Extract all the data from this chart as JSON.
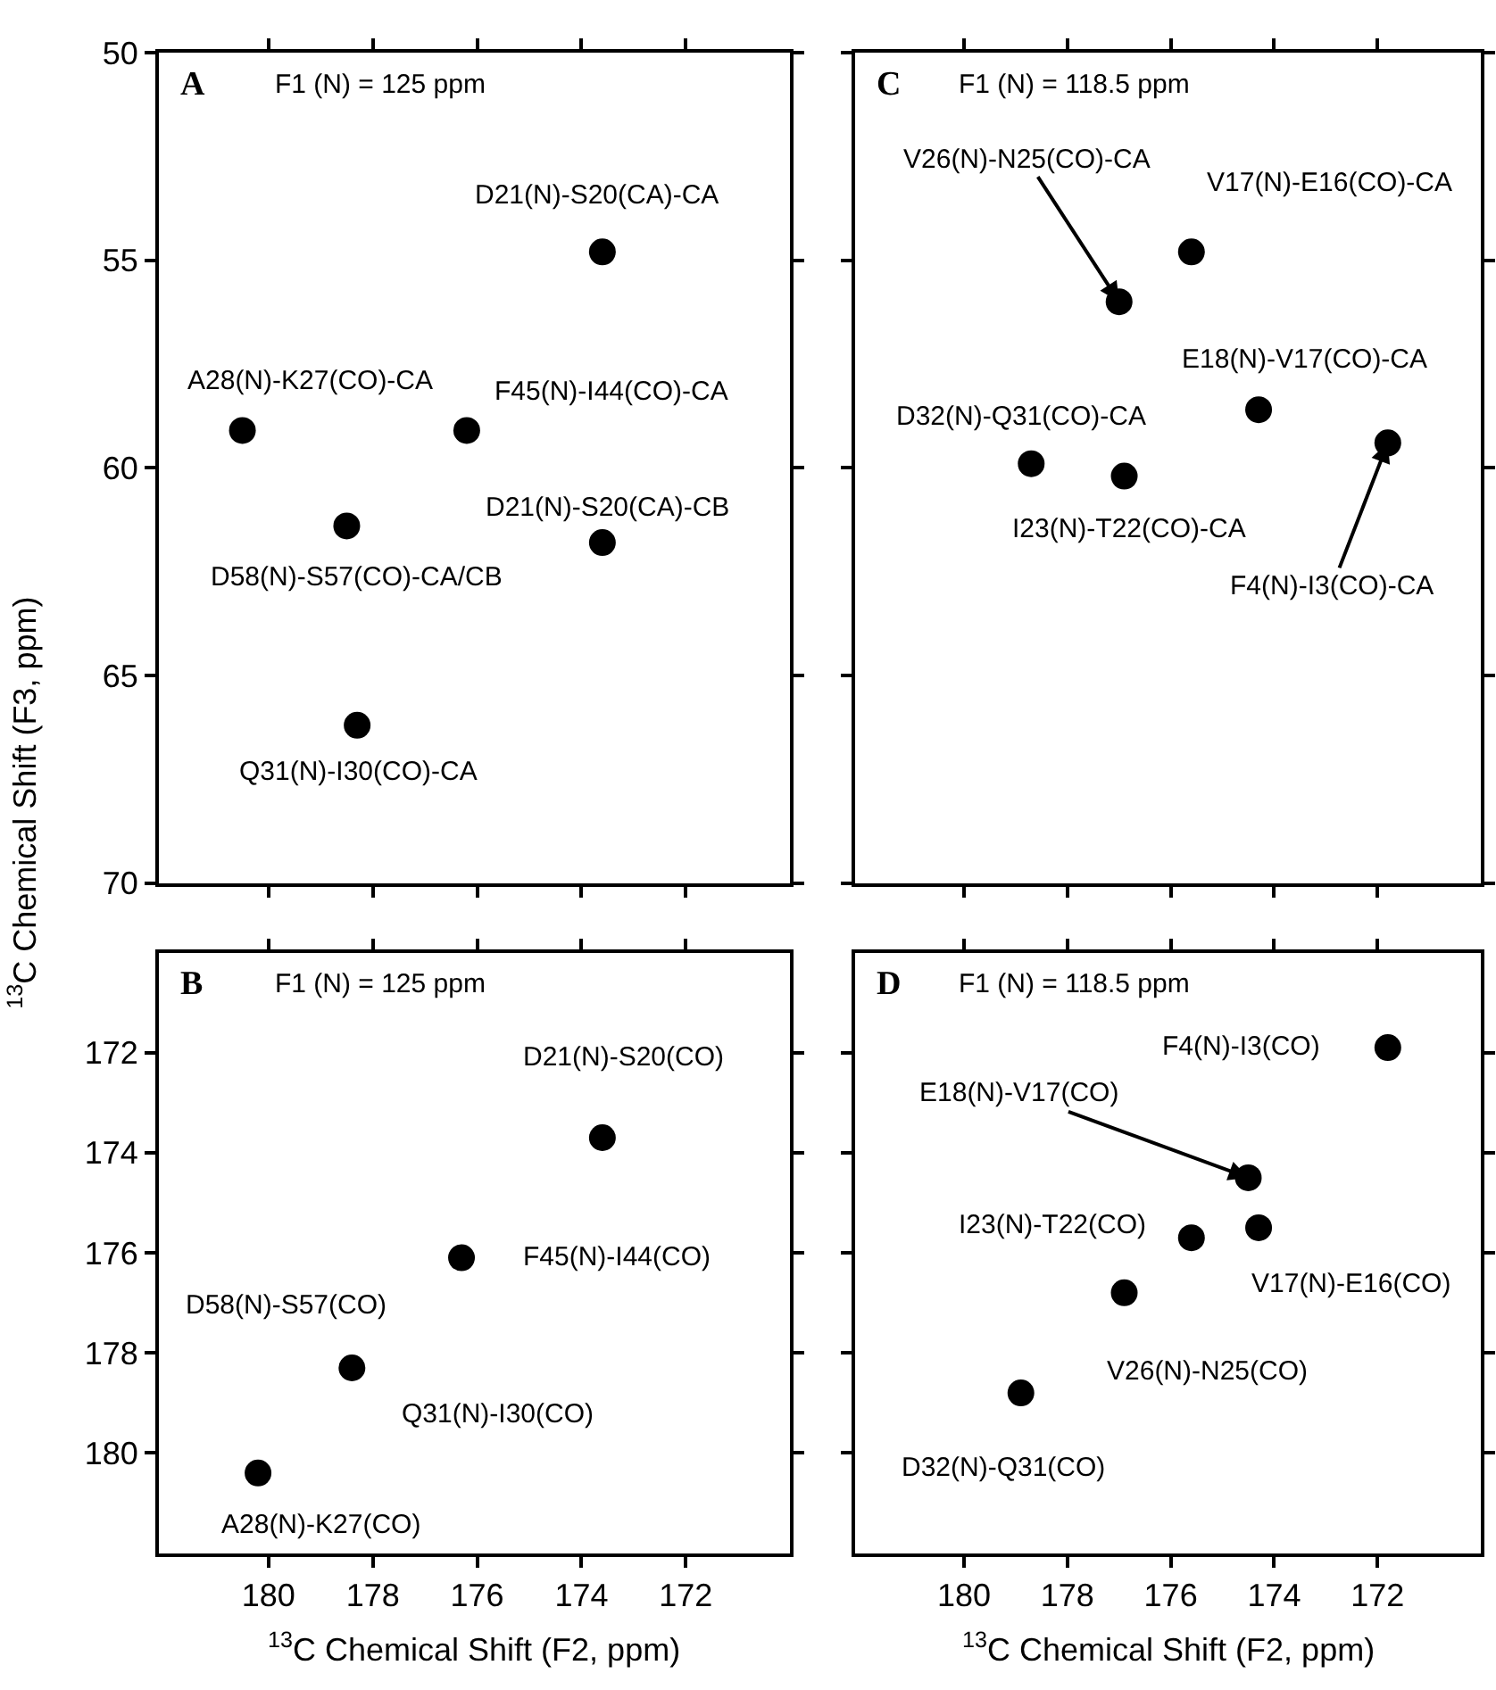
{
  "chart_data": [
    {
      "type": "scatter",
      "title": "A",
      "subtitle": "F1 (N) = 125 ppm",
      "ylabel": "$^{13}$C Chemical Shift (F3, ppm)",
      "marker": "circle",
      "tick_labels": "y",
      "xlim": [
        182.1,
        170.0
      ],
      "xticks": [
        180,
        178,
        176,
        174,
        172
      ],
      "ylim": [
        70,
        50
      ],
      "yticks": [
        50,
        55,
        60,
        65,
        70
      ],
      "series": [
        {
          "color": "#000000",
          "x": [
            173.6,
            180.5,
            176.2,
            178.5,
            173.6,
            178.3
          ],
          "values": [
            54.8,
            59.1,
            59.1,
            61.4,
            61.8,
            66.2
          ]
        }
      ],
      "annotations": [
        {
          "text": "D21(N)-S20(CA)-CA",
          "x": 173.6,
          "y": 54.8
        },
        {
          "text": "A28(N)-K27(CO)-CA",
          "x": 180.5,
          "y": 59.1
        },
        {
          "text": "F45(N)-I44(CO)-CA",
          "x": 176.2,
          "y": 59.1
        },
        {
          "text": "D58(N)-S57(CO)-CA/CB",
          "x": 178.5,
          "y": 61.4
        },
        {
          "text": "D21(N)-S20(CA)-CB",
          "x": 173.6,
          "y": 61.8
        },
        {
          "text": "Q31(N)-I30(CO)-CA",
          "x": 178.3,
          "y": 66.2
        }
      ]
    },
    {
      "type": "scatter",
      "title": "C",
      "subtitle": "F1 (N) = 118.5 ppm",
      "marker": "circle",
      "tick_labels": false,
      "xlim": [
        182.1,
        170.0
      ],
      "xticks": [
        180,
        178,
        176,
        174,
        172
      ],
      "ylim": [
        70,
        50
      ],
      "yticks": [
        50,
        55,
        60,
        65,
        70
      ],
      "series": [
        {
          "color": "#000000",
          "x": [
            177.0,
            175.6,
            174.3,
            178.7,
            176.9,
            171.8
          ],
          "values": [
            56.0,
            54.8,
            58.6,
            59.9,
            60.2,
            59.4
          ]
        }
      ],
      "annotations": [
        {
          "text": "V26(N)-N25(CO)-CA",
          "x": 177.0,
          "y": 56.0
        },
        {
          "text": "V17(N)-E16(CO)-CA",
          "x": 175.6,
          "y": 54.8
        },
        {
          "text": "E18(N)-V17(CO)-CA",
          "x": 174.3,
          "y": 58.6
        },
        {
          "text": "D32(N)-Q31(CO)-CA",
          "x": 178.7,
          "y": 59.9
        },
        {
          "text": "I23(N)-T22(CO)-CA",
          "x": 176.9,
          "y": 60.2
        },
        {
          "text": "F4(N)-I3(CO)-CA",
          "x": 171.8,
          "y": 59.4
        }
      ]
    },
    {
      "type": "scatter",
      "title": "B",
      "subtitle": "F1 (N) = 125 ppm",
      "xlabel": "$^{13}$C Chemical Shift (F2, ppm)",
      "marker": "circle",
      "xlim": [
        182.1,
        170.0
      ],
      "xticks": [
        180,
        178,
        176,
        174,
        172
      ],
      "ylim": [
        182,
        170
      ],
      "yticks": [
        172,
        174,
        176,
        178,
        180
      ],
      "series": [
        {
          "color": "#000000",
          "x": [
            173.6,
            176.3,
            178.4,
            180.2
          ],
          "values": [
            173.7,
            176.1,
            178.3,
            180.4
          ]
        }
      ],
      "annotations": [
        {
          "text": "D21(N)-S20(CO)",
          "x": 173.6,
          "y": 173.7
        },
        {
          "text": "F45(N)-I44(CO)",
          "x": 176.3,
          "y": 176.1
        },
        {
          "text": "D58(N)-S57(CO)",
          "x": 178.4,
          "y": 178.3
        },
        {
          "text": "Q31(N)-I30(CO)",
          "x": 178.4,
          "y": 178.3
        },
        {
          "text": "A28(N)-K27(CO)",
          "x": 180.2,
          "y": 180.4
        }
      ]
    },
    {
      "type": "scatter",
      "title": "D",
      "subtitle": "F1 (N) = 118.5 ppm",
      "xlabel": "$^{13}$C Chemical Shift (F2, ppm)",
      "marker": "circle",
      "tick_labels": "x",
      "xlim": [
        182.1,
        170.0
      ],
      "xticks": [
        180,
        178,
        176,
        174,
        172
      ],
      "ylim": [
        182,
        170
      ],
      "yticks": [
        172,
        174,
        176,
        178,
        180
      ],
      "series": [
        {
          "color": "#000000",
          "x": [
            171.8,
            174.5,
            175.6,
            174.3,
            176.9,
            178.9
          ],
          "values": [
            171.9,
            174.5,
            175.7,
            175.5,
            176.8,
            178.8
          ]
        }
      ],
      "annotations": [
        {
          "text": "F4(N)-I3(CO)",
          "x": 171.8,
          "y": 171.9
        },
        {
          "text": "E18(N)-V17(CO)",
          "x": 174.5,
          "y": 174.5
        },
        {
          "text": "I23(N)-T22(CO)",
          "x": 175.6,
          "y": 175.7
        },
        {
          "text": "V17(N)-E16(CO)",
          "x": 174.3,
          "y": 175.5
        },
        {
          "text": "V26(N)-N25(CO)",
          "x": 176.9,
          "y": 176.8
        },
        {
          "text": "D32(N)-Q31(CO)",
          "x": 178.9,
          "y": 178.8
        }
      ]
    }
  ]
}
